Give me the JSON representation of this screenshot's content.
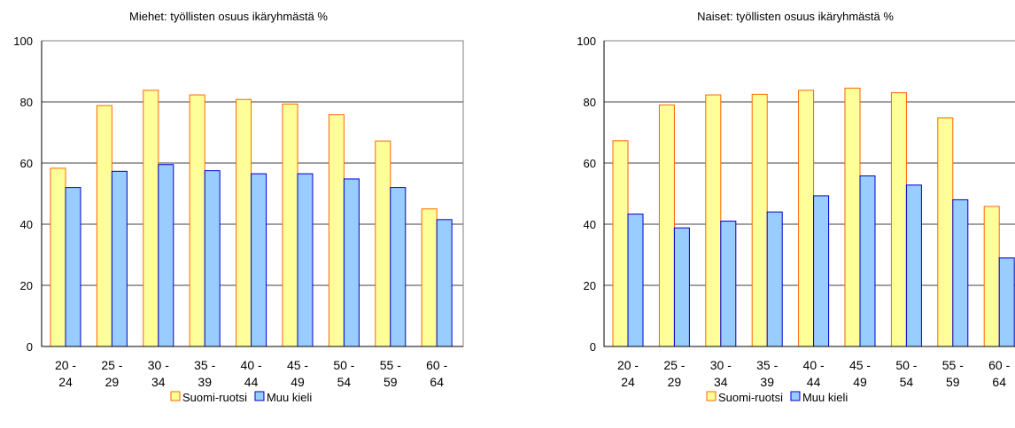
{
  "chart_data": [
    {
      "type": "bar",
      "title": "Miehet: työllisten osuus ikäryhmästä %",
      "categories": [
        [
          "20 -",
          "24"
        ],
        [
          "25 -",
          "29"
        ],
        [
          "30 -",
          "34"
        ],
        [
          "35 -",
          "39"
        ],
        [
          "40 -",
          "44"
        ],
        [
          "45 -",
          "49"
        ],
        [
          "50 -",
          "54"
        ],
        [
          "55 -",
          "59"
        ],
        [
          "60 -",
          "64"
        ]
      ],
      "series": [
        {
          "name": "Suomi-ruotsi",
          "values": [
            58.3,
            78.8,
            83.8,
            82.3,
            80.8,
            79.3,
            75.8,
            67.2,
            45.0
          ]
        },
        {
          "name": "Muu kieli",
          "values": [
            52.0,
            57.3,
            59.5,
            57.5,
            56.5,
            56.5,
            54.8,
            52.0,
            41.5
          ]
        }
      ],
      "yticks": [
        0,
        20,
        40,
        60,
        80,
        100
      ],
      "ylim": [
        0,
        100
      ],
      "grid": true,
      "legend": "bottom"
    },
    {
      "type": "bar",
      "title": "Naiset: työllisten osuus ikäryhmästä %",
      "categories": [
        [
          "20 -",
          "24"
        ],
        [
          "25 -",
          "29"
        ],
        [
          "30 -",
          "34"
        ],
        [
          "35 -",
          "39"
        ],
        [
          "40 -",
          "44"
        ],
        [
          "45 -",
          "49"
        ],
        [
          "50 -",
          "54"
        ],
        [
          "55 -",
          "59"
        ],
        [
          "60 -",
          "64"
        ]
      ],
      "series": [
        {
          "name": "Suomi-ruotsi",
          "values": [
            67.3,
            79.0,
            82.3,
            82.5,
            83.8,
            84.5,
            83.0,
            74.8,
            45.8
          ]
        },
        {
          "name": "Muu kieli",
          "values": [
            43.3,
            38.8,
            41.0,
            44.0,
            49.3,
            55.8,
            52.8,
            48.0,
            29.0
          ]
        }
      ],
      "yticks": [
        0,
        20,
        40,
        60,
        80,
        100
      ],
      "ylim": [
        0,
        100
      ],
      "grid": true,
      "legend": "bottom"
    }
  ],
  "colors": {
    "series": [
      "#ffff99",
      "#99ccff"
    ],
    "series_border": [
      "#ff6600",
      "#0000cc"
    ]
  }
}
